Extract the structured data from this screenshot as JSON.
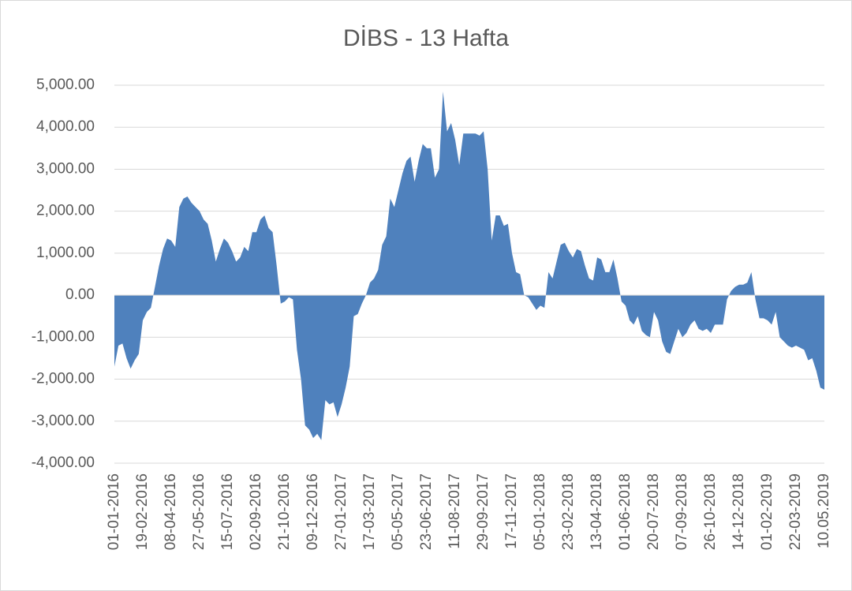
{
  "chart_data": {
    "type": "area",
    "title": "DİBS - 13 Hafta",
    "categories": [
      "01-01-2016",
      null,
      null,
      null,
      null,
      null,
      null,
      "19-02-2016",
      null,
      null,
      null,
      null,
      null,
      null,
      "08-04-2016",
      null,
      null,
      null,
      null,
      null,
      null,
      "27-05-2016",
      null,
      null,
      null,
      null,
      null,
      null,
      "15-07-2016",
      null,
      null,
      null,
      null,
      null,
      null,
      "02-09-2016",
      null,
      null,
      null,
      null,
      null,
      null,
      "21-10-2016",
      null,
      null,
      null,
      null,
      null,
      null,
      "09-12-2016",
      null,
      null,
      null,
      null,
      null,
      null,
      "27-01-2017",
      null,
      null,
      null,
      null,
      null,
      null,
      "17-03-2017",
      null,
      null,
      null,
      null,
      null,
      null,
      "05-05-2017",
      null,
      null,
      null,
      null,
      null,
      null,
      "23-06-2017",
      null,
      null,
      null,
      null,
      null,
      null,
      "11-08-2017",
      null,
      null,
      null,
      null,
      null,
      null,
      "29-09-2017",
      null,
      null,
      null,
      null,
      null,
      null,
      "17-11-2017",
      null,
      null,
      null,
      null,
      null,
      null,
      "05-01-2018",
      null,
      null,
      null,
      null,
      null,
      null,
      "23-02-2018",
      null,
      null,
      null,
      null,
      null,
      null,
      "13-04-2018",
      null,
      null,
      null,
      null,
      null,
      null,
      "01-06-2018",
      null,
      null,
      null,
      null,
      null,
      null,
      "20-07-2018",
      null,
      null,
      null,
      null,
      null,
      null,
      "07-09-2018",
      null,
      null,
      null,
      null,
      null,
      null,
      "26-10-2018",
      null,
      null,
      null,
      null,
      null,
      null,
      "14-12-2018",
      null,
      null,
      null,
      null,
      null,
      null,
      "01-02-2019",
      null,
      null,
      null,
      null,
      null,
      null,
      "22-03-2019",
      null,
      null,
      null,
      null,
      null,
      null,
      "10.05.2019"
    ],
    "values": [
      -1700,
      -1200,
      -1150,
      -1500,
      -1750,
      -1550,
      -1400,
      -600,
      -400,
      -300,
      200,
      700,
      1100,
      1350,
      1300,
      1150,
      2100,
      2300,
      2350,
      2200,
      2100,
      2000,
      1800,
      1700,
      1300,
      800,
      1100,
      1350,
      1250,
      1050,
      800,
      900,
      1150,
      1050,
      1500,
      1500,
      1800,
      1900,
      1600,
      1500,
      700,
      -200,
      -150,
      -50,
      -100,
      -1300,
      -2000,
      -3100,
      -3200,
      -3400,
      -3300,
      -3450,
      -2500,
      -2600,
      -2550,
      -2900,
      -2600,
      -2200,
      -1700,
      -500,
      -450,
      -200,
      0,
      300,
      400,
      600,
      1200,
      1400,
      2300,
      2100,
      2500,
      2900,
      3200,
      3300,
      2700,
      3200,
      3600,
      3500,
      3500,
      2800,
      3000,
      4850,
      3900,
      4100,
      3700,
      3100,
      3850,
      3850,
      3850,
      3850,
      3800,
      3900,
      3000,
      1300,
      1900,
      1900,
      1650,
      1700,
      1000,
      550,
      500,
      0,
      -50,
      -200,
      -350,
      -250,
      -300,
      550,
      400,
      800,
      1200,
      1250,
      1050,
      900,
      1100,
      1050,
      700,
      400,
      350,
      900,
      850,
      550,
      550,
      850,
      400,
      -150,
      -250,
      -600,
      -700,
      -500,
      -850,
      -950,
      -1000,
      -400,
      -600,
      -1100,
      -1350,
      -1400,
      -1100,
      -800,
      -1000,
      -900,
      -700,
      -600,
      -800,
      -850,
      -800,
      -900,
      -700,
      -700,
      -700,
      -100,
      100,
      200,
      250,
      250,
      300,
      550,
      -100,
      -550,
      -550,
      -600,
      -700,
      -400,
      -1000,
      -1100,
      -1200,
      -1250,
      -1200,
      -1250,
      -1300,
      -1550,
      -1500,
      -1800,
      -2200,
      -2250
    ],
    "color": "#4f81bd",
    "ylim": [
      -4000,
      5000
    ],
    "yticks": [
      {
        "value": -4000,
        "label": "-4,000.00"
      },
      {
        "value": -3000,
        "label": "-3,000.00"
      },
      {
        "value": -2000,
        "label": "-2,000.00"
      },
      {
        "value": -1000,
        "label": "-1,000.00"
      },
      {
        "value": 0,
        "label": "0.00"
      },
      {
        "value": 1000,
        "label": "1,000.00"
      },
      {
        "value": 2000,
        "label": "2,000.00"
      },
      {
        "value": 3000,
        "label": "3,000.00"
      },
      {
        "value": 4000,
        "label": "4,000.00"
      },
      {
        "value": 5000,
        "label": "5,000.00"
      }
    ],
    "grid": true
  }
}
